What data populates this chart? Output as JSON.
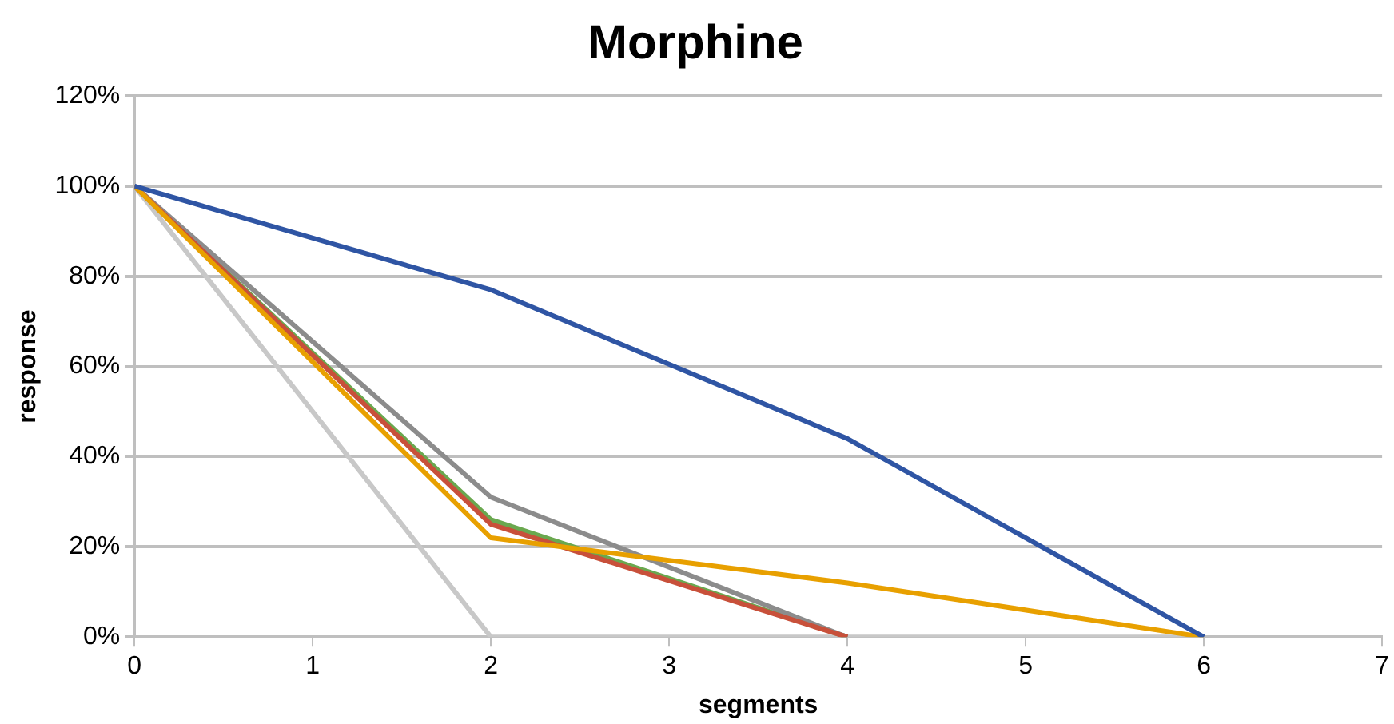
{
  "chart_data": {
    "type": "line",
    "title": "Morphine",
    "xlabel": "segments",
    "ylabel": "response",
    "x": [
      0,
      2,
      4,
      6
    ],
    "series": [
      {
        "color": "#2f55a4",
        "values": [
          100,
          77,
          44,
          0
        ]
      },
      {
        "color": "#e8a000",
        "values": [
          100,
          22,
          12,
          0
        ]
      },
      {
        "color": "#c8503a",
        "values": [
          100,
          25,
          0,
          null
        ]
      },
      {
        "color": "#8c8c8c",
        "values": [
          100,
          31,
          0,
          null
        ]
      },
      {
        "color": "#6aa84f",
        "values": [
          100,
          26,
          0,
          null
        ]
      },
      {
        "color": "#c8c8c8",
        "values": [
          100,
          0,
          0,
          0
        ]
      }
    ],
    "xlim": [
      0,
      7
    ],
    "xticks": [
      0,
      1,
      2,
      3,
      4,
      5,
      6,
      7
    ],
    "ylim": [
      0,
      120
    ],
    "yticks": [
      {
        "value": 0,
        "label": "0%"
      },
      {
        "value": 20,
        "label": "20%"
      },
      {
        "value": 40,
        "label": "40%"
      },
      {
        "value": 60,
        "label": "60%"
      },
      {
        "value": 80,
        "label": "80%"
      },
      {
        "value": 100,
        "label": "100%"
      },
      {
        "value": 120,
        "label": "120%"
      }
    ],
    "grid": "y",
    "legend": false,
    "marker": "none",
    "line_style": "solid"
  }
}
